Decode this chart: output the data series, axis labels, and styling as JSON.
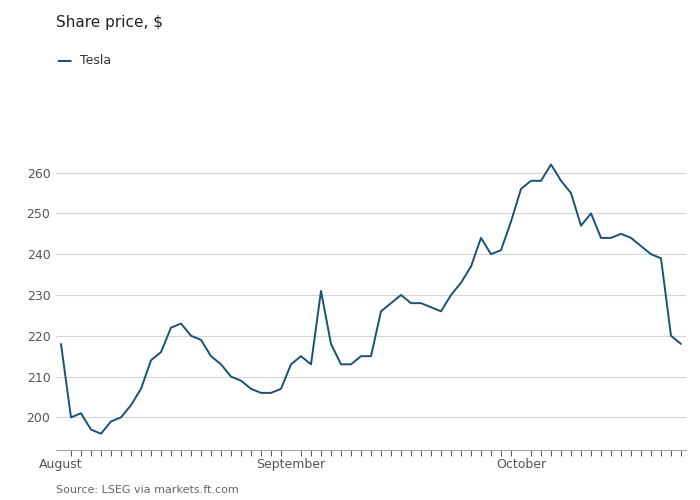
{
  "title": "Share price, $",
  "legend_label": "Tesla",
  "source": "Source: LSEG via markets.ft.com",
  "line_color": "#1a5276",
  "background_color": "#ffffff",
  "grid_color": "#d5d5d5",
  "ylim": [
    192,
    268
  ],
  "yticks": [
    200,
    210,
    220,
    230,
    240,
    250,
    260
  ],
  "x_tick_months": [
    "August",
    "September",
    "October"
  ],
  "x_tick_positions": [
    0,
    23,
    46
  ],
  "prices": [
    218,
    200,
    201,
    197,
    196,
    199,
    200,
    203,
    207,
    214,
    216,
    222,
    223,
    220,
    219,
    215,
    213,
    210,
    209,
    207,
    206,
    206,
    207,
    213,
    215,
    213,
    231,
    218,
    213,
    213,
    215,
    215,
    226,
    228,
    230,
    228,
    228,
    227,
    226,
    230,
    233,
    237,
    244,
    240,
    241,
    248,
    256,
    258,
    258,
    262,
    258,
    255,
    247,
    250,
    244,
    244,
    245,
    244,
    242,
    240,
    239,
    220,
    218
  ]
}
